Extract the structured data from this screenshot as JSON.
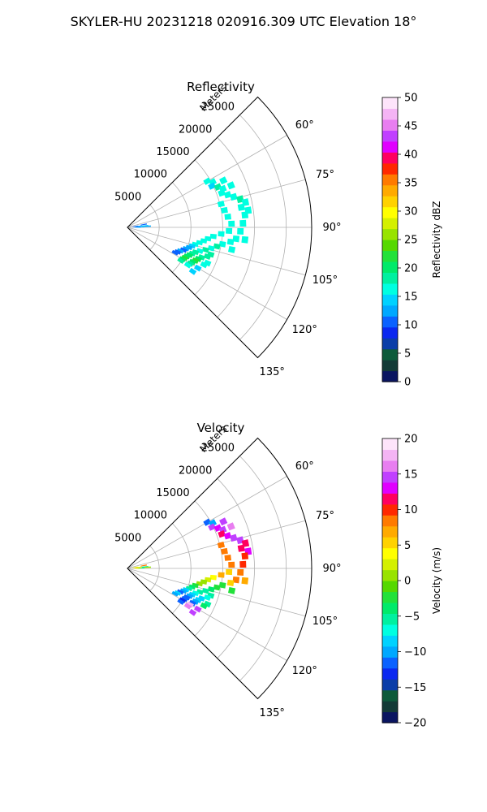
{
  "suptitle": "SKYLER-HU  20231218  020916.309 UTC Elevation 18°",
  "chart_data": [
    {
      "type": "heatmap",
      "projection": "polar-sector",
      "title": "Reflectivity",
      "range_label": "Meters",
      "angle_range_deg": [
        45,
        135
      ],
      "angle_ticks": [
        {
          "value": 60,
          "label": "60°"
        },
        {
          "value": 75,
          "label": "75°"
        },
        {
          "value": 90,
          "label": "90°"
        },
        {
          "value": 105,
          "label": "105°"
        },
        {
          "value": 120,
          "label": "120°"
        },
        {
          "value": 135,
          "label": "135°"
        }
      ],
      "range_max_m": 29000,
      "range_ticks": [
        {
          "value": 5000,
          "label": "5000"
        },
        {
          "value": 10000,
          "label": "10000"
        },
        {
          "value": 15000,
          "label": "15000"
        },
        {
          "value": 20000,
          "label": "20000"
        },
        {
          "value": 25000,
          "label": "25000"
        }
      ],
      "grid": true,
      "colorbar": {
        "label": "Reflectivity dBZ",
        "range": [
          0,
          50
        ],
        "ticks": [
          {
            "value": 0,
            "label": "0"
          },
          {
            "value": 5,
            "label": "5"
          },
          {
            "value": 10,
            "label": "10"
          },
          {
            "value": 15,
            "label": "15"
          },
          {
            "value": 20,
            "label": "20"
          },
          {
            "value": 25,
            "label": "25"
          },
          {
            "value": 30,
            "label": "30"
          },
          {
            "value": 35,
            "label": "35"
          },
          {
            "value": 40,
            "label": "40"
          },
          {
            "value": 45,
            "label": "45"
          },
          {
            "value": 50,
            "label": "50"
          }
        ],
        "colors": [
          "#0a1560",
          "#133a36",
          "#0d5a3a",
          "#0b3ea8",
          "#0b28f0",
          "#0b62ff",
          "#00a8ff",
          "#00d2ff",
          "#00ffe1",
          "#00f0a0",
          "#00ea6a",
          "#22e13a",
          "#55d800",
          "#98e300",
          "#d4f000",
          "#ffff00",
          "#ffd200",
          "#ffaa00",
          "#ff7a00",
          "#ff2800",
          "#ff0060",
          "#e000ff",
          "#c040ff",
          "#e87ef0",
          "#f4b4f4",
          "#fde4fa"
        ]
      },
      "cells": [
        {
          "a": 82,
          "r": 1200,
          "v": 11
        },
        {
          "a": 84,
          "r": 1800,
          "v": 12
        },
        {
          "a": 86,
          "r": 1400,
          "v": 10
        },
        {
          "a": 88,
          "r": 2200,
          "v": 13
        },
        {
          "a": 90,
          "r": 1600,
          "v": 12
        },
        {
          "a": 80,
          "r": 2600,
          "v": 11
        },
        {
          "a": 85,
          "r": 2800,
          "v": 14
        },
        {
          "a": 87,
          "r": 3200,
          "v": 12
        },
        {
          "a": 60,
          "r": 14500,
          "v": 16
        },
        {
          "a": 62,
          "r": 15200,
          "v": 17
        },
        {
          "a": 64,
          "r": 14800,
          "v": 15
        },
        {
          "a": 66,
          "r": 15600,
          "v": 18
        },
        {
          "a": 68,
          "r": 16200,
          "v": 16
        },
        {
          "a": 70,
          "r": 15800,
          "v": 17
        },
        {
          "a": 64,
          "r": 16800,
          "v": 16
        },
        {
          "a": 68,
          "r": 17600,
          "v": 17
        },
        {
          "a": 72,
          "r": 16600,
          "v": 16
        },
        {
          "a": 74,
          "r": 17400,
          "v": 17
        },
        {
          "a": 76,
          "r": 18300,
          "v": 18
        },
        {
          "a": 78,
          "r": 19000,
          "v": 17
        },
        {
          "a": 80,
          "r": 18200,
          "v": 16
        },
        {
          "a": 82,
          "r": 19200,
          "v": 17
        },
        {
          "a": 84,
          "r": 18600,
          "v": 16
        },
        {
          "a": 76,
          "r": 15200,
          "v": 16
        },
        {
          "a": 80,
          "r": 15500,
          "v": 16
        },
        {
          "a": 84,
          "r": 15900,
          "v": 17
        },
        {
          "a": 88,
          "r": 16400,
          "v": 16
        },
        {
          "a": 92,
          "r": 16000,
          "v": 17
        },
        {
          "a": 94,
          "r": 14800,
          "v": 16
        },
        {
          "a": 96,
          "r": 13600,
          "v": 17
        },
        {
          "a": 98,
          "r": 12800,
          "v": 16
        },
        {
          "a": 100,
          "r": 12200,
          "v": 17
        },
        {
          "a": 102,
          "r": 11600,
          "v": 17
        },
        {
          "a": 104,
          "r": 11000,
          "v": 16
        },
        {
          "a": 106,
          "r": 10600,
          "v": 15
        },
        {
          "a": 108,
          "r": 10200,
          "v": 13
        },
        {
          "a": 110,
          "r": 9800,
          "v": 12
        },
        {
          "a": 112,
          "r": 9500,
          "v": 11
        },
        {
          "a": 114,
          "r": 9100,
          "v": 12
        },
        {
          "a": 116,
          "r": 8800,
          "v": 11
        },
        {
          "a": 118,
          "r": 8500,
          "v": 10
        },
        {
          "a": 100,
          "r": 15200,
          "v": 17
        },
        {
          "a": 102,
          "r": 14400,
          "v": 18
        },
        {
          "a": 104,
          "r": 13600,
          "v": 17
        },
        {
          "a": 106,
          "r": 12800,
          "v": 18
        },
        {
          "a": 108,
          "r": 12000,
          "v": 17
        },
        {
          "a": 110,
          "r": 11400,
          "v": 18
        },
        {
          "a": 112,
          "r": 11000,
          "v": 19
        },
        {
          "a": 114,
          "r": 10700,
          "v": 20
        },
        {
          "a": 116,
          "r": 10400,
          "v": 21
        },
        {
          "a": 118,
          "r": 10200,
          "v": 22
        },
        {
          "a": 120,
          "r": 10000,
          "v": 20
        },
        {
          "a": 122,
          "r": 9900,
          "v": 18
        },
        {
          "a": 112,
          "r": 12600,
          "v": 19
        },
        {
          "a": 114,
          "r": 12200,
          "v": 21
        },
        {
          "a": 116,
          "r": 11900,
          "v": 22
        },
        {
          "a": 118,
          "r": 11600,
          "v": 20
        },
        {
          "a": 120,
          "r": 11400,
          "v": 19
        },
        {
          "a": 122,
          "r": 11200,
          "v": 17
        },
        {
          "a": 108,
          "r": 13800,
          "v": 18
        },
        {
          "a": 110,
          "r": 13400,
          "v": 19
        },
        {
          "a": 114,
          "r": 13800,
          "v": 17
        },
        {
          "a": 116,
          "r": 13400,
          "v": 16
        },
        {
          "a": 120,
          "r": 12800,
          "v": 15
        },
        {
          "a": 124,
          "r": 12400,
          "v": 14
        },
        {
          "a": 96,
          "r": 17200,
          "v": 16
        },
        {
          "a": 98,
          "r": 16400,
          "v": 17
        },
        {
          "a": 102,
          "r": 16800,
          "v": 16
        },
        {
          "a": 88,
          "r": 18200,
          "v": 17
        },
        {
          "a": 92,
          "r": 17800,
          "v": 16
        },
        {
          "a": 96,
          "r": 18600,
          "v": 16
        }
      ]
    },
    {
      "type": "heatmap",
      "projection": "polar-sector",
      "title": "Velocity",
      "range_label": "Meters",
      "angle_range_deg": [
        45,
        135
      ],
      "angle_ticks": [
        {
          "value": 60,
          "label": "60°"
        },
        {
          "value": 75,
          "label": "75°"
        },
        {
          "value": 90,
          "label": "90°"
        },
        {
          "value": 105,
          "label": "105°"
        },
        {
          "value": 120,
          "label": "120°"
        },
        {
          "value": 135,
          "label": "135°"
        }
      ],
      "range_max_m": 29000,
      "range_ticks": [
        {
          "value": 5000,
          "label": "5000"
        },
        {
          "value": 10000,
          "label": "10000"
        },
        {
          "value": 15000,
          "label": "15000"
        },
        {
          "value": 20000,
          "label": "20000"
        },
        {
          "value": 25000,
          "label": "25000"
        }
      ],
      "grid": true,
      "colorbar": {
        "label": "Velocity (m/s)",
        "range": [
          -20,
          20
        ],
        "ticks": [
          {
            "value": -20,
            "label": "−20"
          },
          {
            "value": -15,
            "label": "−15"
          },
          {
            "value": -10,
            "label": "−10"
          },
          {
            "value": -5,
            "label": "−5"
          },
          {
            "value": 0,
            "label": "0"
          },
          {
            "value": 5,
            "label": "5"
          },
          {
            "value": 10,
            "label": "10"
          },
          {
            "value": 15,
            "label": "15"
          },
          {
            "value": 20,
            "label": "20"
          }
        ],
        "colors": [
          "#0a1560",
          "#133a36",
          "#0d5a3a",
          "#0b3ea8",
          "#0b28f0",
          "#0b62ff",
          "#00a8ff",
          "#00d2ff",
          "#00ffe1",
          "#00f0a0",
          "#00ea6a",
          "#22e13a",
          "#55d800",
          "#98e300",
          "#d4f000",
          "#ffff00",
          "#ffd200",
          "#ffaa00",
          "#ff7a00",
          "#ff2800",
          "#ff0060",
          "#e000ff",
          "#c040ff",
          "#e87ef0",
          "#f4b4f4",
          "#fde4fa"
        ]
      },
      "cells": [
        {
          "a": 82,
          "r": 1200,
          "v": 2
        },
        {
          "a": 84,
          "r": 1800,
          "v": 4
        },
        {
          "a": 86,
          "r": 1400,
          "v": 6
        },
        {
          "a": 88,
          "r": 2200,
          "v": -4
        },
        {
          "a": 90,
          "r": 1600,
          "v": 3
        },
        {
          "a": 80,
          "r": 2600,
          "v": 8
        },
        {
          "a": 85,
          "r": 2800,
          "v": -6
        },
        {
          "a": 87,
          "r": 3200,
          "v": 1
        },
        {
          "a": 60,
          "r": 14500,
          "v": -11
        },
        {
          "a": 62,
          "r": 15200,
          "v": -10
        },
        {
          "a": 64,
          "r": 14800,
          "v": 14
        },
        {
          "a": 66,
          "r": 15600,
          "v": 13
        },
        {
          "a": 68,
          "r": 16200,
          "v": 15
        },
        {
          "a": 70,
          "r": 15800,
          "v": 12
        },
        {
          "a": 64,
          "r": 16800,
          "v": 14
        },
        {
          "a": 68,
          "r": 17600,
          "v": 16
        },
        {
          "a": 72,
          "r": 16600,
          "v": 13
        },
        {
          "a": 74,
          "r": 17400,
          "v": 15
        },
        {
          "a": 76,
          "r": 18300,
          "v": 14
        },
        {
          "a": 78,
          "r": 19000,
          "v": 12
        },
        {
          "a": 80,
          "r": 18200,
          "v": 11
        },
        {
          "a": 82,
          "r": 19200,
          "v": 13
        },
        {
          "a": 84,
          "r": 18600,
          "v": 10
        },
        {
          "a": 76,
          "r": 15200,
          "v": 9
        },
        {
          "a": 80,
          "r": 15500,
          "v": 8
        },
        {
          "a": 84,
          "r": 15900,
          "v": 9
        },
        {
          "a": 88,
          "r": 16400,
          "v": 8
        },
        {
          "a": 92,
          "r": 16000,
          "v": 6
        },
        {
          "a": 94,
          "r": 14800,
          "v": 7
        },
        {
          "a": 96,
          "r": 13600,
          "v": 4
        },
        {
          "a": 98,
          "r": 12800,
          "v": 3
        },
        {
          "a": 100,
          "r": 12200,
          "v": 1
        },
        {
          "a": 102,
          "r": 11600,
          "v": 0
        },
        {
          "a": 104,
          "r": 11000,
          "v": -2
        },
        {
          "a": 106,
          "r": 10600,
          "v": -4
        },
        {
          "a": 108,
          "r": 10200,
          "v": -6
        },
        {
          "a": 110,
          "r": 9800,
          "v": -8
        },
        {
          "a": 112,
          "r": 9500,
          "v": -10
        },
        {
          "a": 114,
          "r": 9100,
          "v": -11
        },
        {
          "a": 116,
          "r": 8800,
          "v": -9
        },
        {
          "a": 118,
          "r": 8500,
          "v": -10
        },
        {
          "a": 100,
          "r": 15200,
          "v": -3
        },
        {
          "a": 102,
          "r": 14400,
          "v": -2
        },
        {
          "a": 104,
          "r": 13600,
          "v": -4
        },
        {
          "a": 106,
          "r": 12800,
          "v": -5
        },
        {
          "a": 108,
          "r": 12000,
          "v": -6
        },
        {
          "a": 110,
          "r": 11400,
          "v": -7
        },
        {
          "a": 112,
          "r": 11000,
          "v": -9
        },
        {
          "a": 114,
          "r": 10700,
          "v": -10
        },
        {
          "a": 116,
          "r": 10400,
          "v": -11
        },
        {
          "a": 118,
          "r": 10200,
          "v": -12
        },
        {
          "a": 120,
          "r": 10000,
          "v": -13
        },
        {
          "a": 122,
          "r": 9900,
          "v": -11
        },
        {
          "a": 112,
          "r": 12600,
          "v": -8
        },
        {
          "a": 114,
          "r": 12200,
          "v": -9
        },
        {
          "a": 116,
          "r": 11900,
          "v": -10
        },
        {
          "a": 118,
          "r": 11600,
          "v": -12
        },
        {
          "a": 120,
          "r": 11400,
          "v": 17
        },
        {
          "a": 122,
          "r": 11200,
          "v": 16
        },
        {
          "a": 108,
          "r": 13800,
          "v": -6
        },
        {
          "a": 110,
          "r": 13400,
          "v": -7
        },
        {
          "a": 114,
          "r": 13800,
          "v": -5
        },
        {
          "a": 116,
          "r": 13400,
          "v": -4
        },
        {
          "a": 120,
          "r": 12800,
          "v": 15
        },
        {
          "a": 124,
          "r": 12400,
          "v": 14
        },
        {
          "a": 96,
          "r": 17200,
          "v": 8
        },
        {
          "a": 98,
          "r": 16400,
          "v": 6
        },
        {
          "a": 102,
          "r": 16800,
          "v": -3
        },
        {
          "a": 88,
          "r": 18200,
          "v": 10
        },
        {
          "a": 92,
          "r": 17800,
          "v": 9
        },
        {
          "a": 96,
          "r": 18600,
          "v": 7
        }
      ]
    }
  ]
}
